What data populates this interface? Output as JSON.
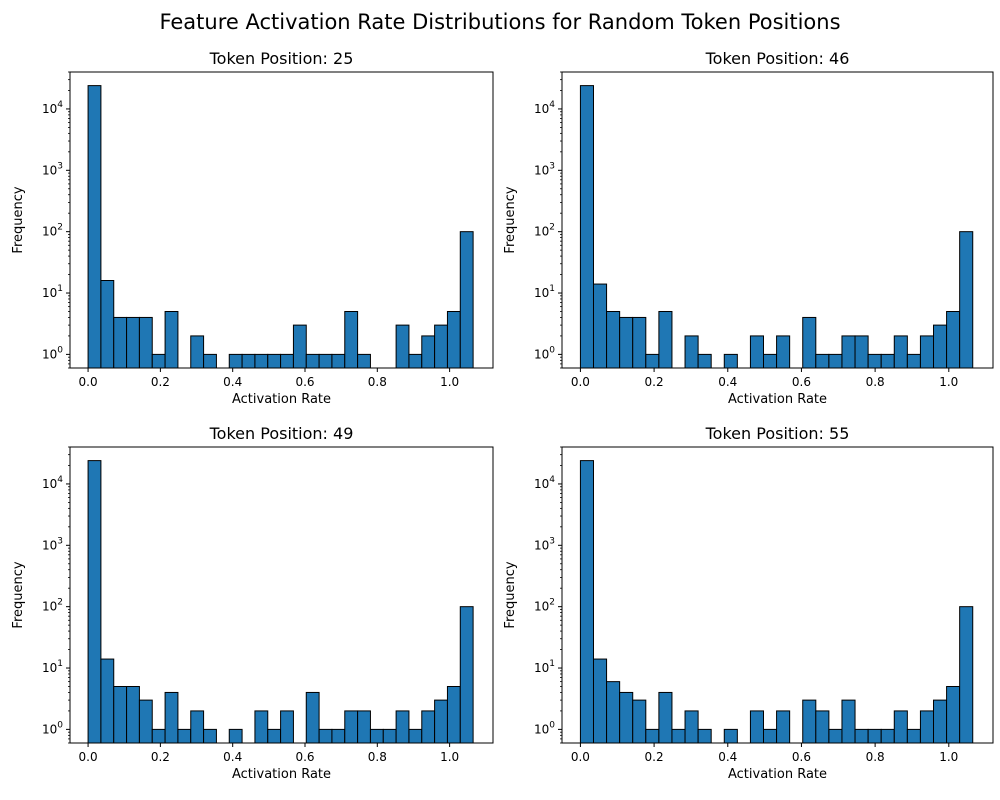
{
  "title": "Feature Activation Rate Distributions for Random Token Positions",
  "colors": {
    "bar_fill": "#1f77b4",
    "bar_edge": "#000000"
  },
  "chart_data": [
    {
      "type": "bar",
      "title": "Token Position: 25",
      "xlabel": "Activation Rate",
      "ylabel": "Frequency",
      "yscale": "log",
      "xlim": [
        -0.05,
        1.12
      ],
      "ylim": [
        0.6,
        40000
      ],
      "xticks": [
        "0.0",
        "0.2",
        "0.4",
        "0.6",
        "0.8",
        "1.0"
      ],
      "bin_start": 0.0,
      "bin_width": 0.0355,
      "values": [
        24000,
        16,
        4,
        4,
        4,
        1,
        5,
        0,
        2,
        1,
        0,
        1,
        1,
        1,
        1,
        1,
        3,
        1,
        1,
        1,
        5,
        1,
        0,
        0,
        3,
        1,
        2,
        3,
        5,
        100
      ]
    },
    {
      "type": "bar",
      "title": "Token Position: 46",
      "xlabel": "Activation Rate",
      "ylabel": "Frequency",
      "yscale": "log",
      "xlim": [
        -0.05,
        1.12
      ],
      "ylim": [
        0.6,
        40000
      ],
      "xticks": [
        "0.0",
        "0.2",
        "0.4",
        "0.6",
        "0.8",
        "1.0"
      ],
      "bin_start": 0.0,
      "bin_width": 0.0355,
      "values": [
        24000,
        14,
        5,
        4,
        4,
        1,
        5,
        0,
        2,
        1,
        0,
        1,
        0,
        2,
        1,
        2,
        0,
        4,
        1,
        1,
        2,
        2,
        1,
        1,
        2,
        1,
        2,
        3,
        5,
        100
      ]
    },
    {
      "type": "bar",
      "title": "Token Position: 49",
      "xlabel": "Activation Rate",
      "ylabel": "Frequency",
      "yscale": "log",
      "xlim": [
        -0.05,
        1.12
      ],
      "ylim": [
        0.6,
        40000
      ],
      "xticks": [
        "0.0",
        "0.2",
        "0.4",
        "0.6",
        "0.8",
        "1.0"
      ],
      "bin_start": 0.0,
      "bin_width": 0.0355,
      "values": [
        24000,
        14,
        5,
        5,
        3,
        1,
        4,
        1,
        2,
        1,
        0,
        1,
        0,
        2,
        1,
        2,
        0,
        4,
        1,
        1,
        2,
        2,
        1,
        1,
        2,
        1,
        2,
        3,
        5,
        100
      ]
    },
    {
      "type": "bar",
      "title": "Token Position: 55",
      "xlabel": "Activation Rate",
      "ylabel": "Frequency",
      "yscale": "log",
      "xlim": [
        -0.05,
        1.12
      ],
      "ylim": [
        0.6,
        40000
      ],
      "xticks": [
        "0.0",
        "0.2",
        "0.4",
        "0.6",
        "0.8",
        "1.0"
      ],
      "bin_start": 0.0,
      "bin_width": 0.0355,
      "values": [
        24000,
        14,
        6,
        4,
        3,
        1,
        4,
        1,
        2,
        1,
        0,
        1,
        0,
        2,
        1,
        2,
        0,
        3,
        2,
        1,
        3,
        1,
        1,
        1,
        2,
        1,
        2,
        3,
        5,
        100
      ]
    }
  ]
}
